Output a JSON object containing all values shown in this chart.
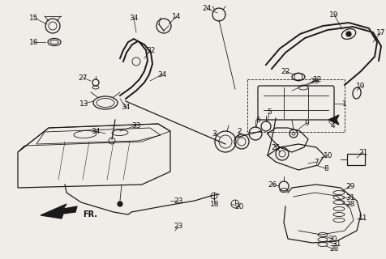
{
  "bg_color": "#f0ede8",
  "line_color": "#1a1a1a",
  "label_color": "#111111",
  "label_fs": 6.5,
  "lw_thin": 0.6,
  "lw_med": 0.9,
  "lw_thick": 1.4
}
